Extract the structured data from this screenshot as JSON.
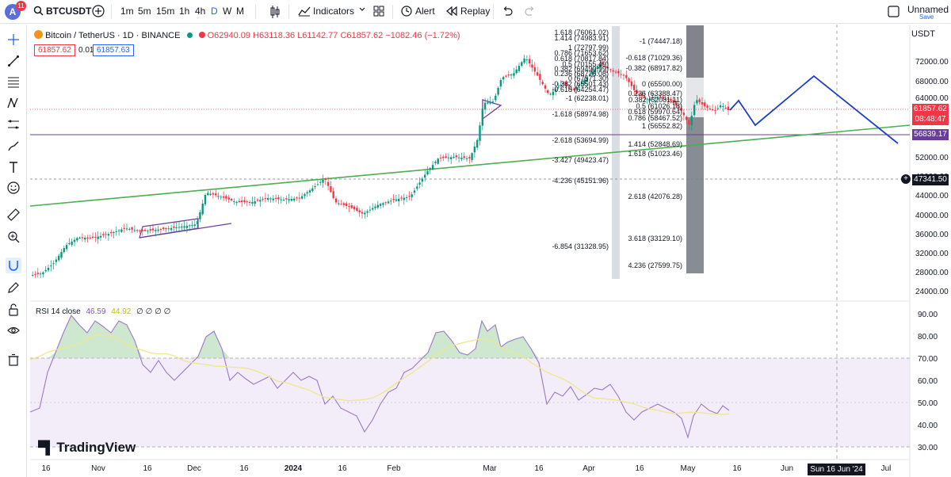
{
  "topbar": {
    "avatar_letter": "A",
    "avatar_badge": "11",
    "symbol": "BTCUSDT",
    "intervals": [
      "1m",
      "5m",
      "15m",
      "1h",
      "4h",
      "D",
      "W",
      "M"
    ],
    "indicators_label": "Indicators",
    "alert_label": "Alert",
    "replay_label": "Replay",
    "layout_name": "Unnamed",
    "save_label": "Save"
  },
  "legend": {
    "title": "Bitcoin / TetherUS · 1D · BINANCE",
    "o": "O62940.09",
    "h": "H63118.36",
    "l": "L61142.77",
    "c": "C61857.62",
    "chg": "−1082.46 (−1.72%)",
    "bid": "61857.62",
    "spread": "0.01",
    "ask": "61857.63",
    "currency": "USDT"
  },
  "price_axis": {
    "ticks": [
      "72000.00",
      "68000.00",
      "64000.00",
      "52000.00",
      "48000.00",
      "44000.00",
      "40000.00",
      "36000.00",
      "32000.00",
      "28000.00",
      "24000.00"
    ],
    "current_price": "61857.62",
    "countdown": "08:48:47",
    "hline1": "56839.17",
    "hline2": "47341.50",
    "colors": {
      "up": "#089981",
      "down": "#f23645",
      "hline": "#6a3d9a",
      "trend": "#4caf50",
      "proj": "#1e40c8"
    }
  },
  "fib_left": [
    "1.618 (76061.02)",
    "1.414 (74983.91)",
    "1 (72797.99)",
    "0.786 (71653.62)",
    "0.618 (70817.84)",
    "0.5 (70155.49)",
    "0.382 (69490.99)",
    "0.236 (68776.08)",
    "0 (67571.30)",
    "-0.382 (65501.43)",
    "-0.618 (64254.47)",
    "-1 (62238.01)",
    "-1.618 (58974.98)",
    "-2.618 (53694.99)",
    "-3.427 (49423.47)",
    "-4.236 (45151.96)",
    "-6.854 (31328.95)"
  ],
  "fib_right": [
    "-1 (74447.18)",
    "-0.618 (71029.36)",
    "-0.382 (68917.82)",
    "0 (65500.00)",
    "0.236 (63388.47)",
    "0.382 (62081.11)",
    "0.5 (61026.18)",
    "0.618 (59970.64)",
    "0.786 (58467.52)",
    "1 (56552.82)",
    "1.414 (52848.69)",
    "1.618 (51023.46)",
    "2.618 (42076.28)",
    "3.618 (33129.10)",
    "4.236 (27599.75)"
  ],
  "rsi": {
    "label": "RSI 14 close",
    "value": "46.59",
    "ma": "44.92",
    "extras": "∅ ∅ ∅ ∅",
    "ticks": [
      "90.00",
      "80.00",
      "70.00",
      "60.00",
      "50.00",
      "40.00",
      "30.00"
    ]
  },
  "time_axis": {
    "labels": [
      "16",
      "Nov",
      "16",
      "Dec",
      "16",
      "2024",
      "16",
      "Feb",
      "Mar",
      "16",
      "Apr",
      "16",
      "May",
      "16",
      "Jun",
      "Sun 16 Jun '24",
      "Jul"
    ]
  },
  "brand": "TradingView"
}
